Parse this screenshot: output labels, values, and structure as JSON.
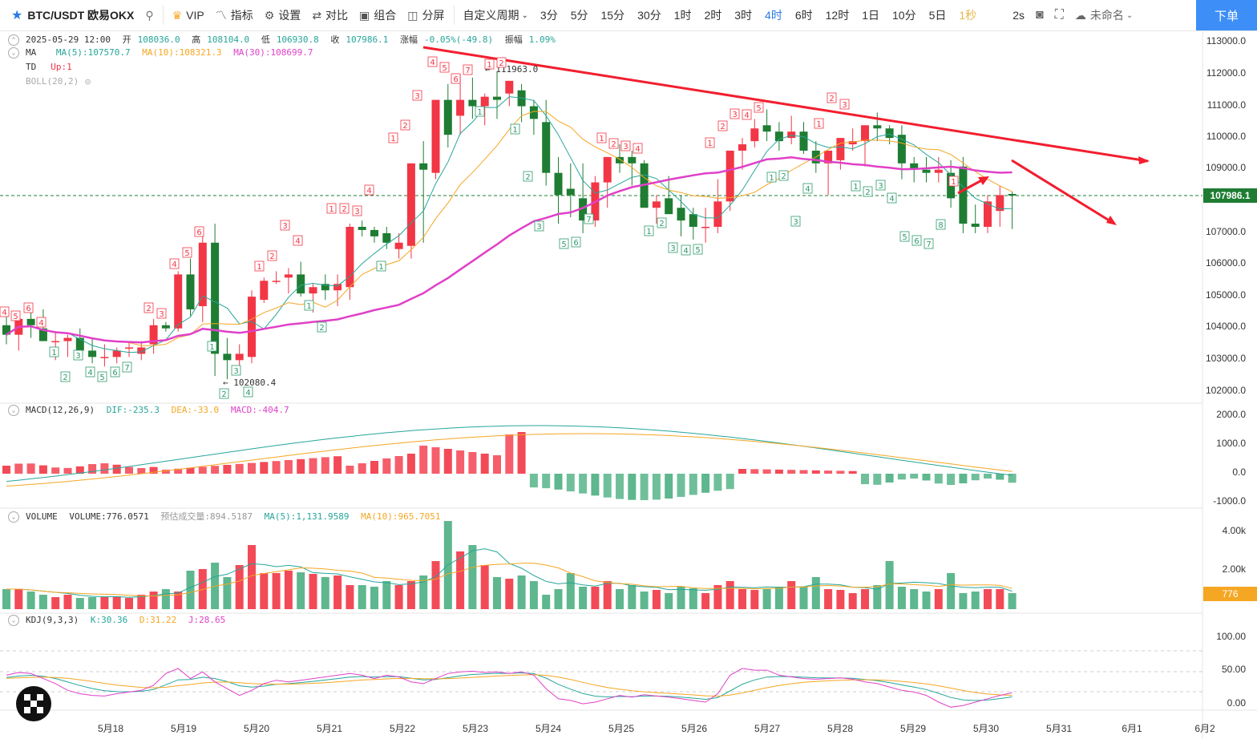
{
  "toolbar": {
    "symbol": "BTC/USDT 欧易OKX",
    "vip": "VIP",
    "indicator": "指标",
    "settings": "设置",
    "compare": "对比",
    "combine": "组合",
    "split": "分屏",
    "custom_period": "自定义周期",
    "periods": [
      "3分",
      "5分",
      "15分",
      "30分",
      "1时",
      "2时",
      "3时",
      "4时",
      "6时",
      "12时",
      "1日",
      "10分",
      "5日",
      "1秒"
    ],
    "active_period": "4时",
    "refresh": "2s",
    "layout_name": "未命名",
    "order": "下单"
  },
  "ohlc": {
    "date": "2025-05-29 12:00",
    "open_label": "开",
    "open": "108036.0",
    "high_label": "高",
    "high": "108104.0",
    "low_label": "低",
    "low": "106930.8",
    "close_label": "收",
    "close": "107986.1",
    "change_label": "涨幅",
    "change": "-0.05%(-49.8)",
    "amp_label": "振幅",
    "amp": "1.09%"
  },
  "ma": {
    "label": "MA",
    "ma5": "MA(5):107570.7",
    "ma10": "MA(10):108321.3",
    "ma30": "MA(30):108699.7"
  },
  "td": {
    "label": "TD",
    "value": "Up:1"
  },
  "boll": {
    "label": "BOLL(20,2)"
  },
  "macd": {
    "label": "MACD(12,26,9)",
    "dif": "DIF:-235.3",
    "dea": "DEA:-33.0",
    "macd": "MACD:-404.7"
  },
  "volume": {
    "label": "VOLUME",
    "value": "VOLUME:776.0571",
    "predicted": "预估成交量:894.5187",
    "ma5": "MA(5):1,131.9589",
    "ma10": "MA(10):965.7051",
    "tag": "776"
  },
  "kdj": {
    "label": "KDJ(9,3,3)",
    "k": "K:30.36",
    "d": "D:31.22",
    "j": "J:28.65"
  },
  "price_axis": [
    "113000.0",
    "112000.0",
    "111000.0",
    "110000.0",
    "109000.0",
    "108000.0",
    "107000.0",
    "106000.0",
    "105000.0",
    "104000.0",
    "103000.0",
    "102000.0"
  ],
  "current_price": "107986.1",
  "macd_axis": [
    "2000.0",
    "1000.0",
    "0.0",
    "-1000.0"
  ],
  "vol_axis": [
    "4.00k",
    "2.00k"
  ],
  "kdj_axis": [
    "100.00",
    "50.00",
    "0.00"
  ],
  "dates": [
    "5月18",
    "5月19",
    "5月20",
    "5月21",
    "5月22",
    "5月23",
    "5月24",
    "5月25",
    "5月26",
    "5月27",
    "5月28",
    "5月29",
    "5月30",
    "5月31",
    "6月1",
    "6月2"
  ],
  "annotations": {
    "high": "111963.0",
    "low": "102080.4"
  },
  "colors": {
    "up": "#f23645",
    "down": "#1e7d32",
    "vol_down": "#4caf82",
    "ma5": "#26a69a",
    "ma10": "#f5a623",
    "ma30": "#e040c8",
    "accent": "#2c7be5",
    "trend": "#f21e2e"
  }
}
